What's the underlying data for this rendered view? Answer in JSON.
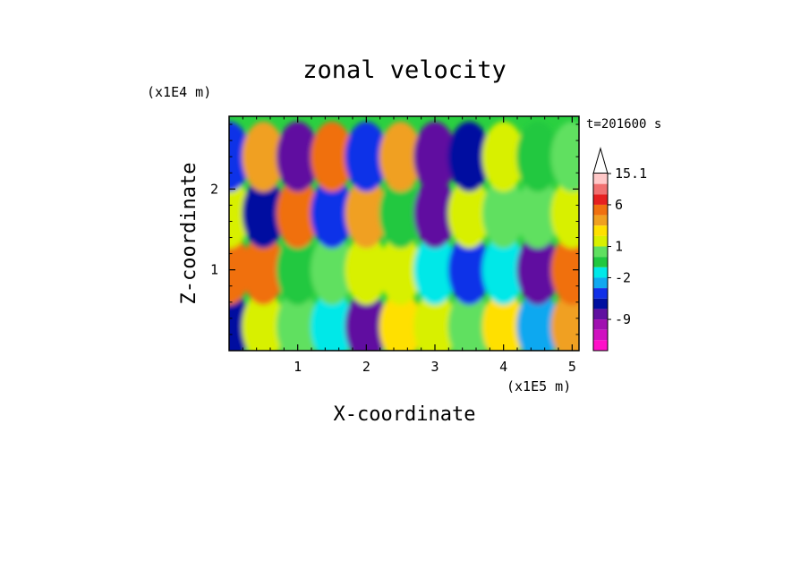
{
  "chart_data": {
    "type": "heatmap",
    "title": "zonal velocity",
    "xlabel": "X-coordinate",
    "ylabel": "Z-coordinate",
    "x_scale_label": "(x1E5 m)",
    "y_scale_label": "(x1E4 m)",
    "time_label": "t=201600 s",
    "xlim": [
      0,
      5.1
    ],
    "ylim": [
      0,
      2.9
    ],
    "x_ticks": [
      1,
      2,
      3,
      4,
      5
    ],
    "y_ticks": [
      1,
      2
    ],
    "x_tick_labels": [
      "1",
      "2",
      "3",
      "4",
      "5"
    ],
    "y_tick_labels": [
      "1",
      "2"
    ],
    "colorbar": {
      "levels_from_top": [
        15.1,
        12,
        9,
        6,
        4,
        3,
        2,
        1,
        0,
        -1,
        -2,
        -3,
        -5,
        -7,
        -9,
        -12,
        -15
      ],
      "colors_from_top": [
        "#ffc8c8",
        "#f07070",
        "#e62020",
        "#f07010",
        "#f0a020",
        "#ffe000",
        "#d8f000",
        "#60e060",
        "#20c840",
        "#00e8e8",
        "#10a8f0",
        "#1030e8",
        "#0010a0",
        "#6010a0",
        "#a010b0",
        "#d010c0",
        "#ff10c8"
      ],
      "labels": [
        "15.1",
        "6",
        "1",
        "-2",
        "-9"
      ],
      "overflow_arrow": "top"
    },
    "field_sketch": {
      "x": [
        0,
        0.5,
        1,
        1.5,
        2,
        2.5,
        3,
        3.5,
        4,
        4.5,
        5
      ],
      "z": [
        0.3,
        1.0,
        1.7,
        2.4
      ],
      "u": [
        [
          -4,
          2,
          1,
          -1,
          -6,
          3,
          2,
          1,
          3,
          -2,
          4
        ],
        [
          8,
          6,
          0,
          1,
          2,
          2,
          -1,
          -3,
          -1,
          -6,
          8
        ],
        [
          2,
          -5,
          6,
          -3,
          5,
          0,
          -6,
          2,
          1,
          1,
          2
        ],
        [
          -3,
          4,
          -6,
          6,
          -3,
          5,
          -6,
          -4,
          2,
          0,
          1
        ]
      ]
    }
  }
}
